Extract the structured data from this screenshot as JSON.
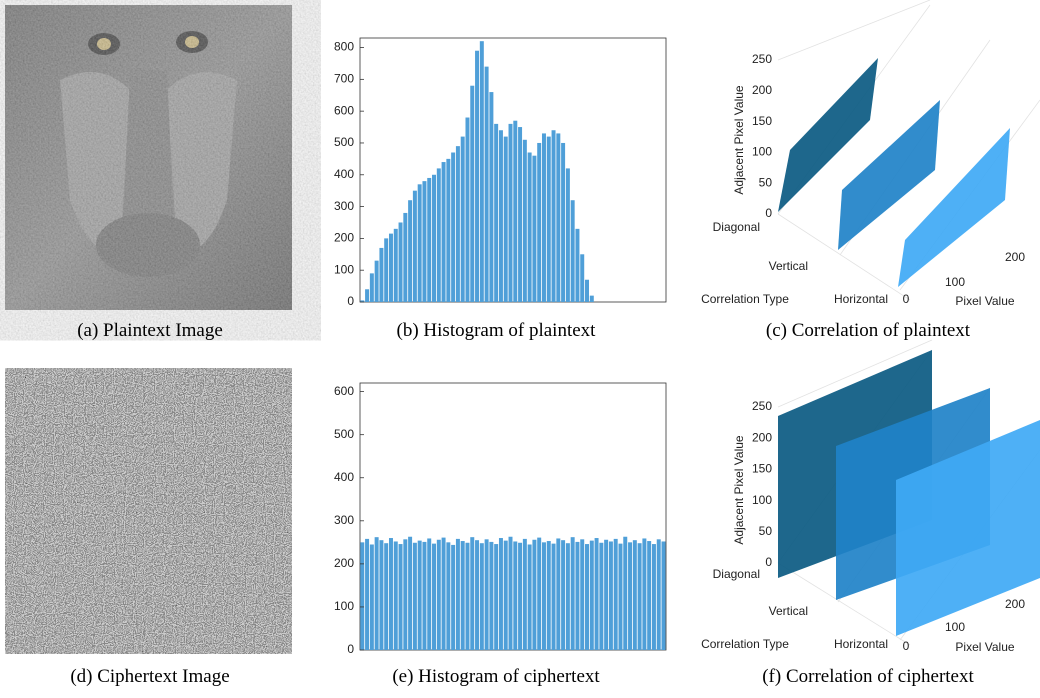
{
  "captions": [
    "(a) Plaintext Image",
    "(b) Histogram of plaintext",
    "(c) Correlation of plaintext",
    "(d) Ciphertext Image",
    "(e) Histogram of ciphertext",
    "(f) Correlation of ciphertext"
  ],
  "chart_data": [
    {
      "type": "bar",
      "color": "#4f9fd8",
      "xlim": [
        0,
        256
      ],
      "ylim": [
        0,
        830
      ],
      "yticks": [
        0,
        100,
        200,
        300,
        400,
        500,
        600,
        700,
        800
      ],
      "values": [
        5,
        40,
        90,
        130,
        170,
        200,
        215,
        230,
        250,
        280,
        320,
        350,
        370,
        380,
        390,
        400,
        420,
        440,
        450,
        470,
        490,
        520,
        580,
        680,
        790,
        820,
        740,
        660,
        560,
        540,
        520,
        560,
        570,
        550,
        510,
        470,
        460,
        500,
        530,
        520,
        540,
        530,
        500,
        420,
        320,
        230,
        150,
        70,
        20,
        0,
        0,
        0,
        0,
        0,
        0,
        0,
        0,
        0,
        0,
        0,
        0,
        0,
        0,
        0
      ]
    },
    {
      "type": "bar",
      "color": "#4f9fd8",
      "xlim": [
        0,
        256
      ],
      "ylim": [
        0,
        620
      ],
      "yticks": [
        0,
        100,
        200,
        300,
        400,
        500,
        600
      ],
      "values": [
        250,
        258,
        245,
        262,
        255,
        248,
        260,
        252,
        246,
        257,
        263,
        249,
        254,
        251,
        259,
        247,
        256,
        261,
        250,
        244,
        258,
        253,
        249,
        262,
        255,
        248,
        257,
        251,
        246,
        260,
        254,
        263,
        252,
        249,
        258,
        245,
        256,
        261,
        250,
        253,
        247,
        259,
        255,
        248,
        262,
        251,
        257,
        246,
        254,
        260,
        249,
        256,
        252,
        258,
        247,
        263,
        250,
        255,
        248,
        259,
        253,
        246,
        257,
        252
      ]
    }
  ],
  "correlation": [
    {
      "y_label": "Adjacent Pixel Value",
      "yticks": [
        0,
        50,
        100,
        150,
        200,
        250
      ],
      "categories": [
        "Diagonal",
        "Vertical",
        "Horizontal"
      ],
      "x_label": "Correlation Type",
      "zticks": [
        0,
        100,
        200
      ],
      "z_label": "Pixel Value",
      "colors": [
        "#0b5a82",
        "#1f82c8",
        "#3fa9f5"
      ]
    },
    {
      "y_label": "Adjacent Pixel Value",
      "yticks": [
        0,
        50,
        100,
        150,
        200,
        250
      ],
      "categories": [
        "Diagonal",
        "Vertical",
        "Horizontal"
      ],
      "x_label": "Correlation Type",
      "zticks": [
        0,
        100,
        200
      ],
      "z_label": "Pixel Value",
      "colors": [
        "#0b5a82",
        "#1f82c8",
        "#3fa9f5"
      ]
    }
  ]
}
